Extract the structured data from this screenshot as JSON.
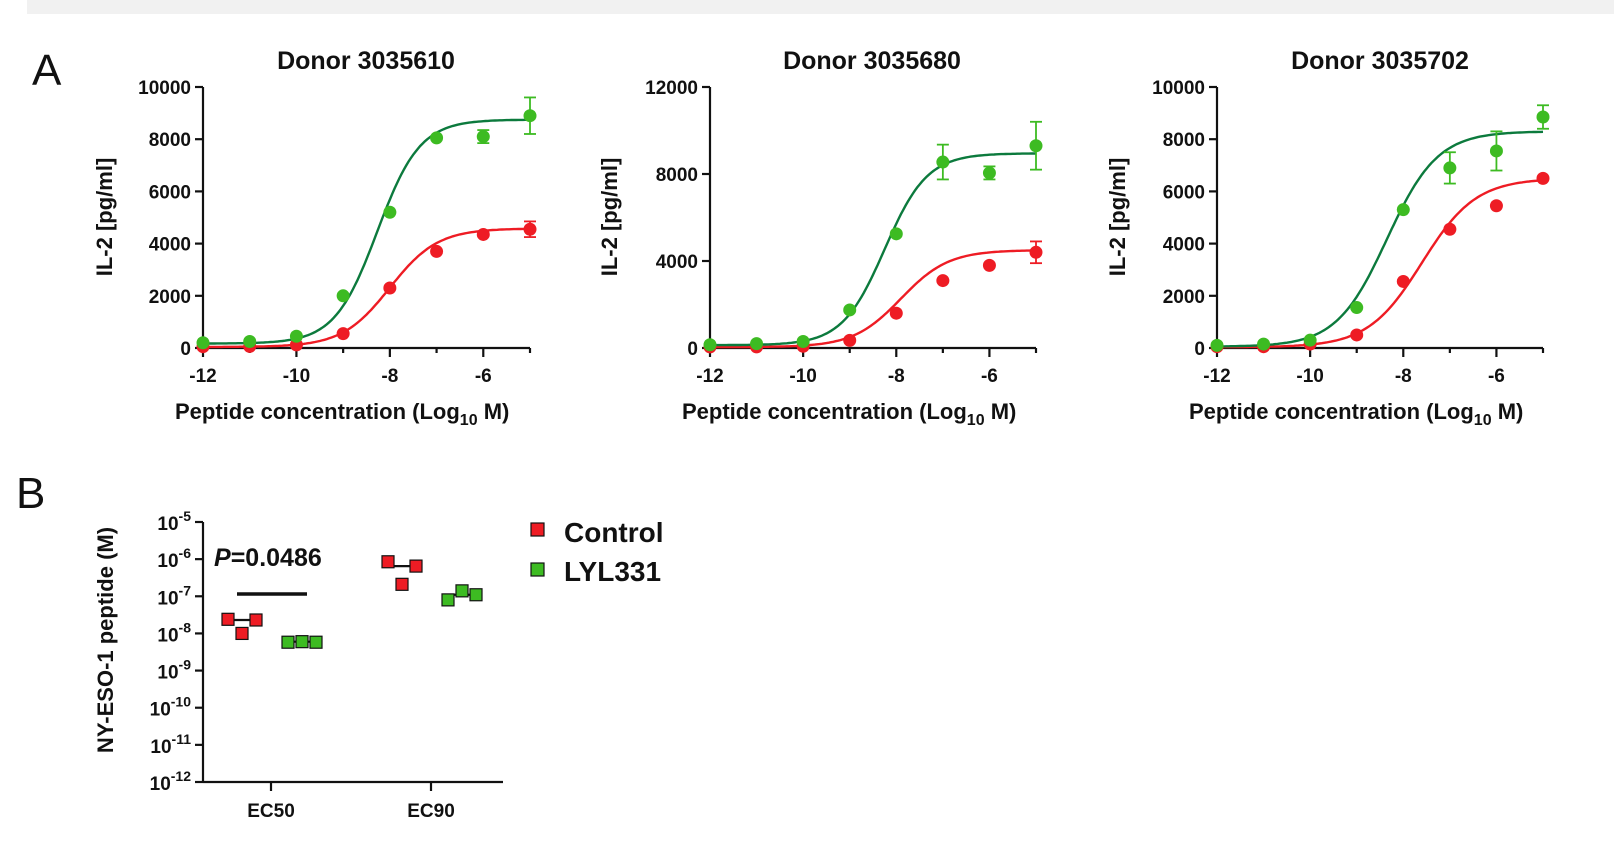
{
  "panel_labels": {
    "a": "A",
    "b": "B"
  },
  "colors": {
    "control": "#ee1c24",
    "lyl331_points": "#3dbb22",
    "lyl331_curve": "#0c7a3d",
    "axis": "#111111"
  },
  "chart_data": [
    {
      "type": "scatter",
      "title": "Donor 3035610",
      "xlabel": "Peptide concentration (Log",
      "xlabel_sub": "10",
      "xlabel_end": " M)",
      "ylabel": "IL-2 [pg/ml]",
      "xlim": [
        -12,
        -5
      ],
      "ylim": [
        0,
        10000
      ],
      "xticks": [
        -12,
        -10,
        -8,
        -6
      ],
      "xtick_labels": [
        "-12",
        "-10",
        "-8",
        "-6"
      ],
      "yticks": [
        0,
        2000,
        4000,
        6000,
        8000,
        10000
      ],
      "ytick_labels": [
        "0",
        "2000",
        "4000",
        "6000",
        "8000",
        "10000"
      ],
      "series": [
        {
          "key": "control",
          "x": [
            -12,
            -11,
            -10,
            -9,
            -8,
            -7,
            -6,
            -5
          ],
          "y": [
            50,
            60,
            120,
            550,
            2300,
            3700,
            4350,
            4550
          ],
          "err": [
            0,
            0,
            0,
            0,
            0,
            0,
            0,
            300
          ],
          "fit": {
            "bottom": 40,
            "top": 4580,
            "logec50": -8.0,
            "hill": 0.85
          }
        },
        {
          "key": "lyl331",
          "x": [
            -12,
            -11,
            -10,
            -9,
            -8,
            -7,
            -6,
            -5
          ],
          "y": [
            200,
            250,
            450,
            2000,
            5200,
            8050,
            8100,
            8900
          ],
          "err": [
            0,
            0,
            0,
            0,
            0,
            0,
            250,
            700
          ],
          "fit": {
            "bottom": 170,
            "top": 8750,
            "logec50": -8.27,
            "hill": 0.95
          }
        }
      ]
    },
    {
      "type": "scatter",
      "title": "Donor 3035680",
      "xlabel": "Peptide concentration (Log",
      "xlabel_sub": "10",
      "xlabel_end": " M)",
      "ylabel": "IL-2 [pg/ml]",
      "xlim": [
        -12,
        -5
      ],
      "ylim": [
        0,
        12000
      ],
      "xticks": [
        -12,
        -10,
        -8,
        -6
      ],
      "xtick_labels": [
        "-12",
        "-10",
        "-8",
        "-6"
      ],
      "yticks": [
        0,
        4000,
        8000,
        12000
      ],
      "ytick_labels": [
        "0",
        "4000",
        "8000",
        "12000"
      ],
      "series": [
        {
          "key": "control",
          "x": [
            -12,
            -11,
            -10,
            -9,
            -8,
            -7,
            -6,
            -5
          ],
          "y": [
            50,
            50,
            80,
            350,
            1600,
            3100,
            3800,
            4400
          ],
          "err": [
            0,
            0,
            0,
            0,
            0,
            0,
            0,
            500
          ],
          "fit": {
            "bottom": 40,
            "top": 4500,
            "logec50": -7.9,
            "hill": 0.85
          }
        },
        {
          "key": "lyl331",
          "x": [
            -12,
            -11,
            -10,
            -9,
            -8,
            -7,
            -6,
            -5
          ],
          "y": [
            150,
            200,
            300,
            1750,
            5250,
            8550,
            8050,
            9300
          ],
          "err": [
            0,
            0,
            0,
            0,
            0,
            800,
            300,
            1100
          ],
          "fit": {
            "bottom": 130,
            "top": 8950,
            "logec50": -8.25,
            "hill": 0.95
          }
        }
      ]
    },
    {
      "type": "scatter",
      "title": "Donor 3035702",
      "xlabel": "Peptide concentration (Log",
      "xlabel_sub": "10",
      "xlabel_end": " M)",
      "ylabel": "IL-2 [pg/ml]",
      "xlim": [
        -12,
        -5
      ],
      "ylim": [
        0,
        10000
      ],
      "xticks": [
        -12,
        -10,
        -8,
        -6
      ],
      "xtick_labels": [
        "-12",
        "-10",
        "-8",
        "-6"
      ],
      "yticks": [
        0,
        2000,
        4000,
        6000,
        8000,
        10000
      ],
      "ytick_labels": [
        "0",
        "2000",
        "4000",
        "6000",
        "8000",
        "10000"
      ],
      "series": [
        {
          "key": "control",
          "x": [
            -12,
            -11,
            -10,
            -9,
            -8,
            -7,
            -6,
            -5
          ],
          "y": [
            50,
            50,
            150,
            500,
            2550,
            4550,
            5450,
            6500
          ],
          "err": [
            0,
            0,
            0,
            0,
            0,
            0,
            0,
            0
          ],
          "fit": {
            "bottom": 30,
            "top": 6500,
            "logec50": -7.6,
            "hill": 0.75
          }
        },
        {
          "key": "lyl331",
          "x": [
            -12,
            -11,
            -10,
            -9,
            -8,
            -7,
            -6,
            -5
          ],
          "y": [
            100,
            150,
            300,
            1550,
            5300,
            6900,
            7550,
            8850
          ],
          "err": [
            0,
            0,
            0,
            0,
            0,
            600,
            750,
            450
          ],
          "fit": {
            "bottom": 50,
            "top": 8300,
            "logec50": -8.35,
            "hill": 0.8
          }
        }
      ]
    },
    {
      "type": "scatter",
      "title": "",
      "ylabel": "NY-ESO-1 peptide (M)",
      "yscale": "log",
      "ylim": [
        1e-12,
        1e-05
      ],
      "categories": [
        "EC50",
        "EC90"
      ],
      "ytick_exponents": [
        "-5",
        "-6",
        "-7",
        "-8",
        "-9",
        "-10",
        "-11",
        "-12"
      ],
      "ytick_base": "10",
      "series": [
        {
          "key": "control",
          "name": "Control",
          "EC50": [
            2.4e-08,
            1e-08,
            2.3e-08
          ],
          "EC90": [
            8.5e-07,
            2.1e-07,
            6.5e-07
          ],
          "median": {
            "EC50": 2.3e-08,
            "EC90": 6.5e-07
          }
        },
        {
          "key": "lyl331",
          "name": "LYL331",
          "EC50": [
            5.8e-09,
            6e-09,
            5.8e-09
          ],
          "EC90": [
            8e-08,
            1.4e-07,
            1.1e-07
          ],
          "median": {
            "EC50": 6e-09,
            "EC90": 1.1e-07
          }
        }
      ],
      "annotation": {
        "p_label": "P",
        "p_value": "=0.0486",
        "group": "EC50"
      },
      "legend": [
        {
          "key": "control",
          "label": "Control"
        },
        {
          "key": "lyl331",
          "label": "LYL331"
        }
      ]
    }
  ]
}
